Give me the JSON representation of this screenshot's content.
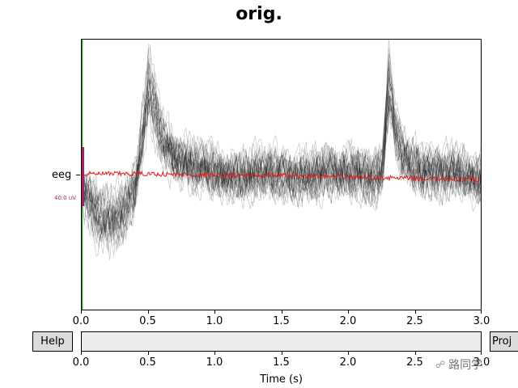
{
  "title": "orig.",
  "channel": {
    "name": "eeg",
    "scale_label": "40.0 uV"
  },
  "buttons": {
    "help": "Help",
    "proj": "Proj"
  },
  "xaxis": {
    "label": "Time (s)",
    "ticks": [
      "0.0",
      "0.5",
      "1.0",
      "1.5",
      "2.0",
      "2.5",
      "3.0"
    ]
  },
  "watermark": "路同学",
  "colors": {
    "traces": "#000000",
    "mean_trace": "#e31a1c",
    "scale_bar": "#a2216a",
    "time_marker": "#2ca02c",
    "scrollbar": "#ececec",
    "button": "#dcdcdc"
  },
  "chart_data": {
    "type": "line",
    "title": "orig.",
    "xlabel": "Time (s)",
    "xlim": [
      0.0,
      3.0
    ],
    "ylabel": "",
    "y_tick_labels": [
      "eeg"
    ],
    "series": [
      {
        "kind": "overlaid epochs (black)",
        "x": [
          0.0,
          0.1,
          0.2,
          0.3,
          0.4,
          0.45,
          0.5,
          0.55,
          0.6,
          0.7,
          0.8,
          0.9,
          1.0,
          1.2,
          1.4,
          1.6,
          1.8,
          2.0,
          2.2,
          2.25,
          2.3,
          2.35,
          2.4,
          2.5,
          2.6,
          2.8,
          3.0
        ],
        "y_uV": [
          -10,
          -25,
          -30,
          -28,
          -10,
          25,
          60,
          45,
          25,
          12,
          8,
          5,
          2,
          0,
          3,
          -2,
          1,
          2,
          -1,
          5,
          60,
          30,
          15,
          5,
          0,
          3,
          -5
        ]
      },
      {
        "kind": "mean (red)",
        "x": [
          0.0,
          0.5,
          1.0,
          1.5,
          2.0,
          2.5,
          3.0
        ],
        "y_uV": [
          1,
          1,
          0,
          0,
          -1,
          -2,
          -3
        ]
      }
    ]
  }
}
